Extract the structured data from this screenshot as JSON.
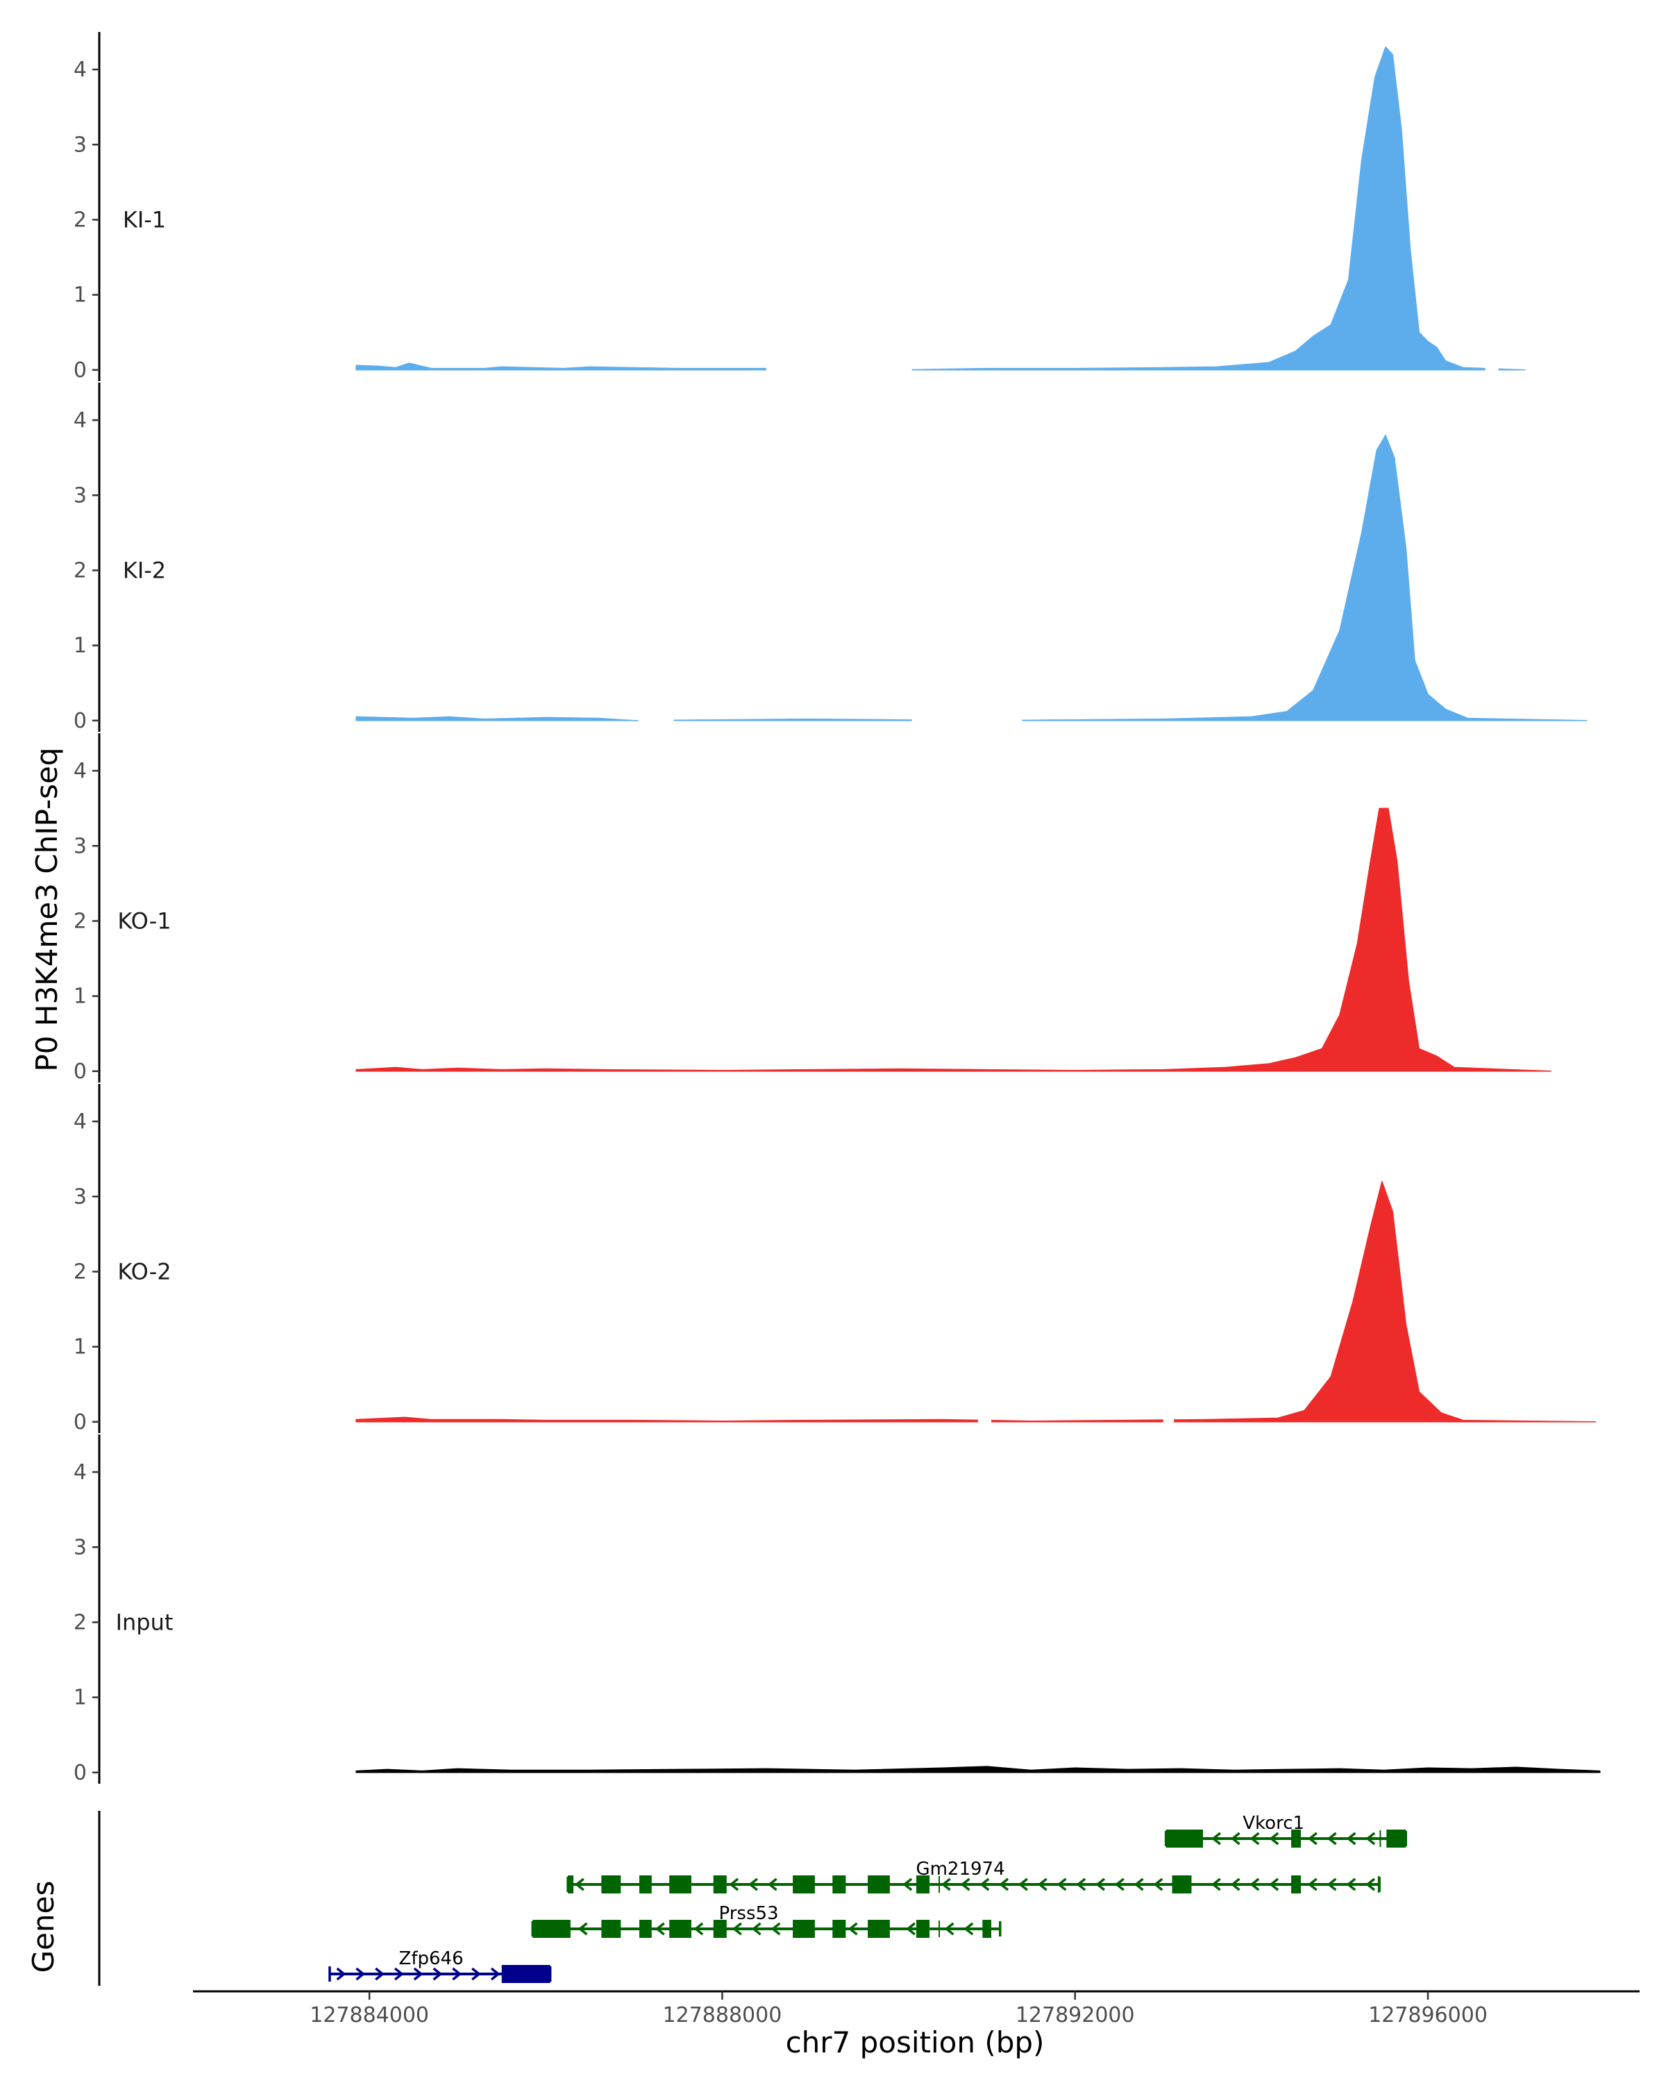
{
  "chart_data": {
    "type": "area",
    "ylabel": "P0 H3K4me3 ChIP-seq",
    "xlabel": "chr7 position (bp)",
    "xlim": [
      127882000,
      127898400
    ],
    "ylim": [
      -0.15,
      4.5
    ],
    "y_ticks": [
      0,
      1,
      2,
      3,
      4
    ],
    "x_ticks": [
      127884000,
      127888000,
      127892000,
      127896000
    ],
    "x_tick_labels": [
      "127884000",
      "127888000",
      "127892000",
      "127896000"
    ],
    "grid": false,
    "tracks": [
      {
        "name": "KI-1",
        "color": "#5DADEC",
        "points": [
          [
            127883850,
            0.06
          ],
          [
            127884100,
            0.05
          ],
          [
            127884300,
            0.03
          ],
          [
            127884450,
            0.09
          ],
          [
            127884700,
            0.02
          ],
          [
            127885300,
            0.02
          ],
          [
            127885500,
            0.04
          ],
          [
            127886200,
            0.02
          ],
          [
            127886500,
            0.04
          ],
          [
            127887500,
            0.02
          ],
          [
            127888500,
            0.02
          ],
          [
            127890000,
            0.0
          ],
          [
            127891000,
            0.02
          ],
          [
            127892000,
            0.02
          ],
          [
            127893000,
            0.03
          ],
          [
            127893600,
            0.04
          ],
          [
            127894200,
            0.1
          ],
          [
            127894500,
            0.25
          ],
          [
            127894700,
            0.45
          ],
          [
            127894900,
            0.6
          ],
          [
            127895100,
            1.2
          ],
          [
            127895250,
            2.8
          ],
          [
            127895400,
            3.9
          ],
          [
            127895520,
            4.3
          ],
          [
            127895600,
            4.2
          ],
          [
            127895700,
            3.2
          ],
          [
            127895800,
            1.6
          ],
          [
            127895900,
            0.5
          ],
          [
            127896000,
            0.38
          ],
          [
            127896100,
            0.3
          ],
          [
            127896200,
            0.12
          ],
          [
            127896400,
            0.03
          ],
          [
            127897100,
            0.0
          ]
        ],
        "gaps": [
          [
            127888500,
            127890150
          ],
          [
            127896650,
            127896800
          ]
        ]
      },
      {
        "name": "KI-2",
        "color": "#5DADEC",
        "points": [
          [
            127883850,
            0.05
          ],
          [
            127884500,
            0.03
          ],
          [
            127884900,
            0.05
          ],
          [
            127885300,
            0.02
          ],
          [
            127886000,
            0.04
          ],
          [
            127886600,
            0.03
          ],
          [
            127887000,
            0.0
          ],
          [
            127888000,
            0.01
          ],
          [
            127889000,
            0.02
          ],
          [
            127890000,
            0.01
          ],
          [
            127891000,
            0.0
          ],
          [
            127892000,
            0.01
          ],
          [
            127893000,
            0.02
          ],
          [
            127894000,
            0.05
          ],
          [
            127894400,
            0.12
          ],
          [
            127894700,
            0.4
          ],
          [
            127895000,
            1.2
          ],
          [
            127895250,
            2.5
          ],
          [
            127895420,
            3.6
          ],
          [
            127895520,
            3.8
          ],
          [
            127895620,
            3.5
          ],
          [
            127895750,
            2.3
          ],
          [
            127895850,
            0.8
          ],
          [
            127896000,
            0.35
          ],
          [
            127896200,
            0.15
          ],
          [
            127896450,
            0.03
          ],
          [
            127897800,
            0.0
          ]
        ],
        "gaps": [
          [
            127887050,
            127887450
          ],
          [
            127890150,
            127891400
          ]
        ]
      },
      {
        "name": "KO-1",
        "color": "#EE2B2B",
        "points": [
          [
            127883850,
            0.02
          ],
          [
            127884300,
            0.05
          ],
          [
            127884600,
            0.02
          ],
          [
            127885000,
            0.04
          ],
          [
            127885500,
            0.02
          ],
          [
            127886000,
            0.03
          ],
          [
            127886700,
            0.02
          ],
          [
            127888000,
            0.01
          ],
          [
            127889000,
            0.02
          ],
          [
            127890000,
            0.03
          ],
          [
            127891000,
            0.02
          ],
          [
            127892000,
            0.01
          ],
          [
            127893000,
            0.02
          ],
          [
            127893700,
            0.05
          ],
          [
            127894200,
            0.1
          ],
          [
            127894500,
            0.18
          ],
          [
            127894800,
            0.3
          ],
          [
            127895000,
            0.75
          ],
          [
            127895200,
            1.7
          ],
          [
            127895350,
            2.8
          ],
          [
            127895450,
            3.5
          ],
          [
            127895550,
            3.5
          ],
          [
            127895650,
            2.8
          ],
          [
            127895780,
            1.2
          ],
          [
            127895900,
            0.3
          ],
          [
            127896100,
            0.2
          ],
          [
            127896300,
            0.05
          ],
          [
            127897400,
            0.0
          ]
        ],
        "gaps": [
          [
            127897400,
            127897750
          ]
        ]
      },
      {
        "name": "KO-2",
        "color": "#EE2B2B",
        "points": [
          [
            127883850,
            0.03
          ],
          [
            127884400,
            0.06
          ],
          [
            127884700,
            0.03
          ],
          [
            127885500,
            0.03
          ],
          [
            127886000,
            0.02
          ],
          [
            127887000,
            0.02
          ],
          [
            127888000,
            0.01
          ],
          [
            127889000,
            0.02
          ],
          [
            127890500,
            0.03
          ],
          [
            127891500,
            0.01
          ],
          [
            127892500,
            0.02
          ],
          [
            127893500,
            0.03
          ],
          [
            127894300,
            0.05
          ],
          [
            127894600,
            0.15
          ],
          [
            127894900,
            0.6
          ],
          [
            127895150,
            1.6
          ],
          [
            127895350,
            2.6
          ],
          [
            127895480,
            3.2
          ],
          [
            127895600,
            2.8
          ],
          [
            127895750,
            1.3
          ],
          [
            127895900,
            0.4
          ],
          [
            127896150,
            0.12
          ],
          [
            127896400,
            0.02
          ],
          [
            127897900,
            0.0
          ]
        ],
        "gaps": [
          [
            127890900,
            127891050
          ],
          [
            127893000,
            127893120
          ]
        ]
      },
      {
        "name": "Input",
        "color": "#000000",
        "points": [
          [
            127883850,
            0.02
          ],
          [
            127884200,
            0.04
          ],
          [
            127884600,
            0.02
          ],
          [
            127885000,
            0.05
          ],
          [
            127885600,
            0.03
          ],
          [
            127886500,
            0.03
          ],
          [
            127887500,
            0.04
          ],
          [
            127888500,
            0.05
          ],
          [
            127889500,
            0.03
          ],
          [
            127890500,
            0.06
          ],
          [
            127891000,
            0.08
          ],
          [
            127891500,
            0.03
          ],
          [
            127892000,
            0.06
          ],
          [
            127892600,
            0.04
          ],
          [
            127893200,
            0.05
          ],
          [
            127893800,
            0.03
          ],
          [
            127894400,
            0.04
          ],
          [
            127895000,
            0.05
          ],
          [
            127895500,
            0.03
          ],
          [
            127896000,
            0.06
          ],
          [
            127896500,
            0.05
          ],
          [
            127897000,
            0.07
          ],
          [
            127897500,
            0.04
          ],
          [
            127897950,
            0.02
          ]
        ],
        "gaps": []
      }
    ],
    "genes_track_label": "Genes",
    "genes": [
      {
        "name": "Vkorc1",
        "row": 0,
        "strand": "-",
        "color": "#006400",
        "start": 127893030,
        "end": 127895750,
        "label_pos": 127894250,
        "exons": [
          [
            127893030,
            127893450
          ],
          [
            127894450,
            127894560
          ],
          [
            127895530,
            127895750
          ]
        ],
        "marks": [
          127895460
        ]
      },
      {
        "name": "Gm21974",
        "row": 1,
        "strand": "-",
        "color": "#006400",
        "start": 127886250,
        "end": 127895450,
        "label_pos": 127890700,
        "exons": [
          [
            127886250,
            127886290
          ],
          [
            127886630,
            127886850
          ],
          [
            127887060,
            127887200
          ],
          [
            127887400,
            127887650
          ],
          [
            127887900,
            127888050
          ],
          [
            127888800,
            127889050
          ],
          [
            127889250,
            127889400
          ],
          [
            127889650,
            127889900
          ],
          [
            127890200,
            127890350
          ],
          [
            127893100,
            127893320
          ],
          [
            127894450,
            127894560
          ]
        ],
        "marks": [
          127890460,
          127895440
        ]
      },
      {
        "name": "Prss53",
        "row": 2,
        "strand": "-",
        "color": "#006400",
        "start": 127885850,
        "end": 127891150,
        "label_pos": 127888300,
        "exons": [
          [
            127885850,
            127886280
          ],
          [
            127886630,
            127886850
          ],
          [
            127887060,
            127887200
          ],
          [
            127887400,
            127887650
          ],
          [
            127887900,
            127888050
          ],
          [
            127888800,
            127889050
          ],
          [
            127889250,
            127889400
          ],
          [
            127889650,
            127889900
          ],
          [
            127890200,
            127890350
          ],
          [
            127890950,
            127891050
          ]
        ],
        "marks": [
          127890460
        ]
      },
      {
        "name": "Zfp646",
        "row": 3,
        "strand": "+",
        "color": "#00008B",
        "start": 127883550,
        "end": 127886050,
        "label_pos": 127884700,
        "exons": [
          [
            127885500,
            127886050
          ]
        ],
        "marks": []
      }
    ]
  }
}
